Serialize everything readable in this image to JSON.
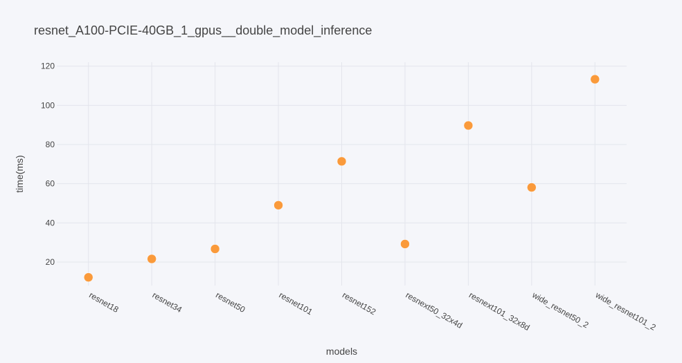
{
  "chart_data": {
    "type": "scatter",
    "title": "resnet_A100-PCIE-40GB_1_gpus__double_model_inference",
    "xlabel": "models",
    "ylabel": "time(ms)",
    "categories": [
      "resnet18",
      "resnet34",
      "resnet50",
      "resnet101",
      "resnet152",
      "resnext50_32x4d",
      "resnext101_32x8d",
      "wide_resnet50_2",
      "wide_resnet101_2"
    ],
    "values": [
      12.2,
      21.6,
      26.7,
      49.0,
      71.4,
      29.2,
      89.7,
      58.1,
      113.3
    ],
    "ylim": [
      8.0,
      122.0
    ],
    "yticks": [
      20,
      40,
      60,
      80,
      100,
      120
    ],
    "grid": true,
    "legend": "none",
    "marker_color": "#fa9a3b"
  }
}
